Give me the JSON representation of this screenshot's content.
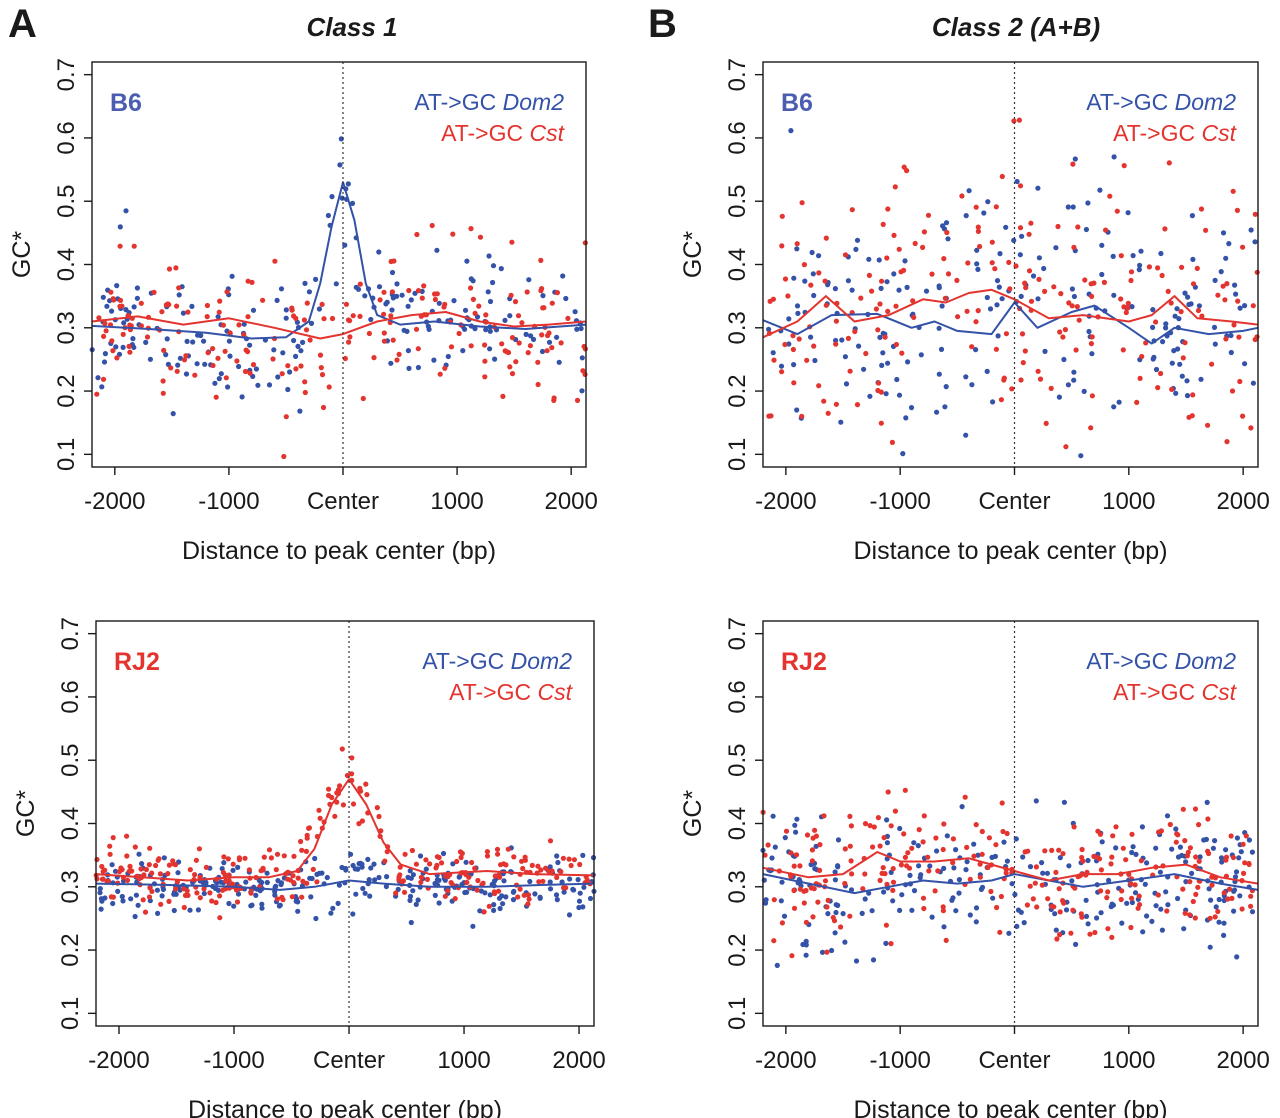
{
  "figure": {
    "panel_letters": [
      "A",
      "B"
    ],
    "column_titles": [
      "Class 1",
      "Class 2 (A+B)"
    ]
  },
  "colors": {
    "dom2": "#3352a8",
    "cst": "#e3342f",
    "axis": "#1a1a1a"
  },
  "chart_data": [
    {
      "type": "scatter",
      "panel": "A-top",
      "strain_label": "B6",
      "strain_color": "#4a5db0",
      "xlabel": "Distance to peak center (bp)",
      "ylabel": "GC*",
      "xlim": [
        -2200,
        2130
      ],
      "ylim": [
        0.08,
        0.72
      ],
      "x_ticks": [
        -2000,
        -1000,
        0,
        1000,
        2000
      ],
      "x_tick_labels": [
        "-2000",
        "-1000",
        "Center",
        "1000",
        "2000"
      ],
      "y_ticks": [
        0.1,
        0.2,
        0.3,
        0.4,
        0.5,
        0.6,
        0.7
      ],
      "y_tick_labels": [
        "0.1",
        "0.2",
        "0.3",
        "0.4",
        "0.5",
        "0.6",
        "0.7"
      ],
      "center_line": 0,
      "legend_position": "top-right",
      "series": [
        {
          "legend_prefix": "AT->GC ",
          "legend_name": "Dom2",
          "color": "#3352a8",
          "trend": [
            [
              -2200,
              0.303
            ],
            [
              -1700,
              0.298
            ],
            [
              -1200,
              0.292
            ],
            [
              -800,
              0.283
            ],
            [
              -500,
              0.285
            ],
            [
              -300,
              0.31
            ],
            [
              -200,
              0.37
            ],
            [
              -100,
              0.46
            ],
            [
              0,
              0.53
            ],
            [
              100,
              0.47
            ],
            [
              200,
              0.37
            ],
            [
              300,
              0.32
            ],
            [
              500,
              0.305
            ],
            [
              800,
              0.31
            ],
            [
              1200,
              0.302
            ],
            [
              1600,
              0.298
            ],
            [
              2130,
              0.305
            ]
          ],
          "scatter": {
            "count": 210,
            "spread": 0.052,
            "seed": 11
          }
        },
        {
          "legend_prefix": "AT->GC ",
          "legend_name": "Cst",
          "color": "#e3342f",
          "trend": [
            [
              -2200,
              0.31
            ],
            [
              -1800,
              0.318
            ],
            [
              -1400,
              0.305
            ],
            [
              -1000,
              0.315
            ],
            [
              -600,
              0.3
            ],
            [
              -200,
              0.283
            ],
            [
              0,
              0.29
            ],
            [
              300,
              0.31
            ],
            [
              600,
              0.32
            ],
            [
              900,
              0.325
            ],
            [
              1200,
              0.31
            ],
            [
              1500,
              0.302
            ],
            [
              1800,
              0.305
            ],
            [
              2130,
              0.31
            ]
          ],
          "scatter": {
            "count": 210,
            "spread": 0.055,
            "seed": 23
          }
        }
      ]
    },
    {
      "type": "scatter",
      "panel": "B-top",
      "strain_label": "B6",
      "strain_color": "#4a5db0",
      "xlabel": "Distance to peak center (bp)",
      "ylabel": "GC*",
      "xlim": [
        -2200,
        2130
      ],
      "ylim": [
        0.08,
        0.72
      ],
      "x_ticks": [
        -2000,
        -1000,
        0,
        1000,
        2000
      ],
      "x_tick_labels": [
        "-2000",
        "-1000",
        "Center",
        "1000",
        "2000"
      ],
      "y_ticks": [
        0.1,
        0.2,
        0.3,
        0.4,
        0.5,
        0.6,
        0.7
      ],
      "y_tick_labels": [
        "0.1",
        "0.2",
        "0.3",
        "0.4",
        "0.5",
        "0.6",
        "0.7"
      ],
      "center_line": 0,
      "legend_position": "top-right",
      "series": [
        {
          "legend_prefix": "AT->GC ",
          "legend_name": "Dom2",
          "color": "#3352a8",
          "trend": [
            [
              -2200,
              0.312
            ],
            [
              -1900,
              0.29
            ],
            [
              -1600,
              0.32
            ],
            [
              -1200,
              0.322
            ],
            [
              -900,
              0.3
            ],
            [
              -700,
              0.31
            ],
            [
              -500,
              0.295
            ],
            [
              -200,
              0.29
            ],
            [
              0,
              0.34
            ],
            [
              200,
              0.3
            ],
            [
              500,
              0.325
            ],
            [
              700,
              0.335
            ],
            [
              1000,
              0.3
            ],
            [
              1200,
              0.275
            ],
            [
              1400,
              0.3
            ],
            [
              1700,
              0.29
            ],
            [
              2000,
              0.295
            ],
            [
              2130,
              0.3
            ]
          ],
          "scatter": {
            "count": 220,
            "spread": 0.105,
            "seed": 37
          }
        },
        {
          "legend_prefix": "AT->GC ",
          "legend_name": "Cst",
          "color": "#e3342f",
          "trend": [
            [
              -2200,
              0.285
            ],
            [
              -1900,
              0.31
            ],
            [
              -1650,
              0.35
            ],
            [
              -1400,
              0.31
            ],
            [
              -1100,
              0.32
            ],
            [
              -800,
              0.345
            ],
            [
              -600,
              0.34
            ],
            [
              -400,
              0.355
            ],
            [
              -200,
              0.36
            ],
            [
              0,
              0.345
            ],
            [
              300,
              0.315
            ],
            [
              600,
              0.32
            ],
            [
              1000,
              0.31
            ],
            [
              1200,
              0.32
            ],
            [
              1400,
              0.35
            ],
            [
              1600,
              0.315
            ],
            [
              1900,
              0.31
            ],
            [
              2130,
              0.305
            ]
          ],
          "scatter": {
            "count": 220,
            "spread": 0.11,
            "seed": 41
          }
        }
      ]
    },
    {
      "type": "scatter",
      "panel": "A-bottom",
      "strain_label": "RJ2",
      "strain_color": "#e3342f",
      "xlabel": "Distance to peak center (bp)",
      "ylabel": "GC*",
      "xlim": [
        -2200,
        2130
      ],
      "ylim": [
        0.08,
        0.72
      ],
      "x_ticks": [
        -2000,
        -1000,
        0,
        1000,
        2000
      ],
      "x_tick_labels": [
        "-2000",
        "-1000",
        "Center",
        "1000",
        "2000"
      ],
      "y_ticks": [
        0.1,
        0.2,
        0.3,
        0.4,
        0.5,
        0.6,
        0.7
      ],
      "y_tick_labels": [
        "0.1",
        "0.2",
        "0.3",
        "0.4",
        "0.5",
        "0.6",
        "0.7"
      ],
      "center_line": 0,
      "legend_position": "top-right",
      "series": [
        {
          "legend_prefix": "AT->GC ",
          "legend_name": "Dom2",
          "color": "#3352a8",
          "trend": [
            [
              -2200,
              0.305
            ],
            [
              -1600,
              0.303
            ],
            [
              -1000,
              0.3
            ],
            [
              -600,
              0.295
            ],
            [
              -300,
              0.3
            ],
            [
              0,
              0.31
            ],
            [
              300,
              0.305
            ],
            [
              700,
              0.3
            ],
            [
              1200,
              0.3
            ],
            [
              1700,
              0.303
            ],
            [
              2130,
              0.305
            ]
          ],
          "scatter": {
            "count": 280,
            "spread": 0.022,
            "seed": 53
          }
        },
        {
          "legend_prefix": "AT->GC ",
          "legend_name": "Cst",
          "color": "#e3342f",
          "trend": [
            [
              -2200,
              0.32
            ],
            [
              -1800,
              0.315
            ],
            [
              -1400,
              0.31
            ],
            [
              -1000,
              0.315
            ],
            [
              -700,
              0.315
            ],
            [
              -450,
              0.325
            ],
            [
              -300,
              0.36
            ],
            [
              -150,
              0.43
            ],
            [
              0,
              0.47
            ],
            [
              150,
              0.43
            ],
            [
              300,
              0.37
            ],
            [
              450,
              0.335
            ],
            [
              700,
              0.32
            ],
            [
              1200,
              0.325
            ],
            [
              1600,
              0.32
            ],
            [
              2130,
              0.318
            ]
          ],
          "scatter": {
            "count": 280,
            "spread": 0.025,
            "seed": 59
          }
        }
      ]
    },
    {
      "type": "scatter",
      "panel": "B-bottom",
      "strain_label": "RJ2",
      "strain_color": "#e3342f",
      "xlabel": "Distance to peak center (bp)",
      "ylabel": "GC*",
      "xlim": [
        -2200,
        2130
      ],
      "ylim": [
        0.08,
        0.72
      ],
      "x_ticks": [
        -2000,
        -1000,
        0,
        1000,
        2000
      ],
      "x_tick_labels": [
        "-2000",
        "-1000",
        "Center",
        "1000",
        "2000"
      ],
      "y_ticks": [
        0.1,
        0.2,
        0.3,
        0.4,
        0.5,
        0.6,
        0.7
      ],
      "y_tick_labels": [
        "0.1",
        "0.2",
        "0.3",
        "0.4",
        "0.5",
        "0.6",
        "0.7"
      ],
      "center_line": 0,
      "legend_position": "top-right",
      "series": [
        {
          "legend_prefix": "AT->GC ",
          "legend_name": "Dom2",
          "color": "#3352a8",
          "trend": [
            [
              -2200,
              0.32
            ],
            [
              -1800,
              0.305
            ],
            [
              -1400,
              0.29
            ],
            [
              -1100,
              0.3
            ],
            [
              -800,
              0.31
            ],
            [
              -500,
              0.305
            ],
            [
              -200,
              0.31
            ],
            [
              0,
              0.32
            ],
            [
              300,
              0.31
            ],
            [
              600,
              0.3
            ],
            [
              1000,
              0.31
            ],
            [
              1400,
              0.32
            ],
            [
              1800,
              0.305
            ],
            [
              2130,
              0.295
            ]
          ],
          "scatter": {
            "count": 260,
            "spread": 0.048,
            "seed": 67
          }
        },
        {
          "legend_prefix": "AT->GC ",
          "legend_name": "Cst",
          "color": "#e3342f",
          "trend": [
            [
              -2200,
              0.33
            ],
            [
              -1800,
              0.315
            ],
            [
              -1500,
              0.32
            ],
            [
              -1200,
              0.355
            ],
            [
              -1000,
              0.34
            ],
            [
              -700,
              0.34
            ],
            [
              -400,
              0.345
            ],
            [
              -200,
              0.335
            ],
            [
              0,
              0.325
            ],
            [
              300,
              0.31
            ],
            [
              600,
              0.32
            ],
            [
              900,
              0.32
            ],
            [
              1200,
              0.33
            ],
            [
              1500,
              0.335
            ],
            [
              1800,
              0.315
            ],
            [
              2130,
              0.305
            ]
          ],
          "scatter": {
            "count": 260,
            "spread": 0.05,
            "seed": 71
          }
        }
      ]
    }
  ]
}
